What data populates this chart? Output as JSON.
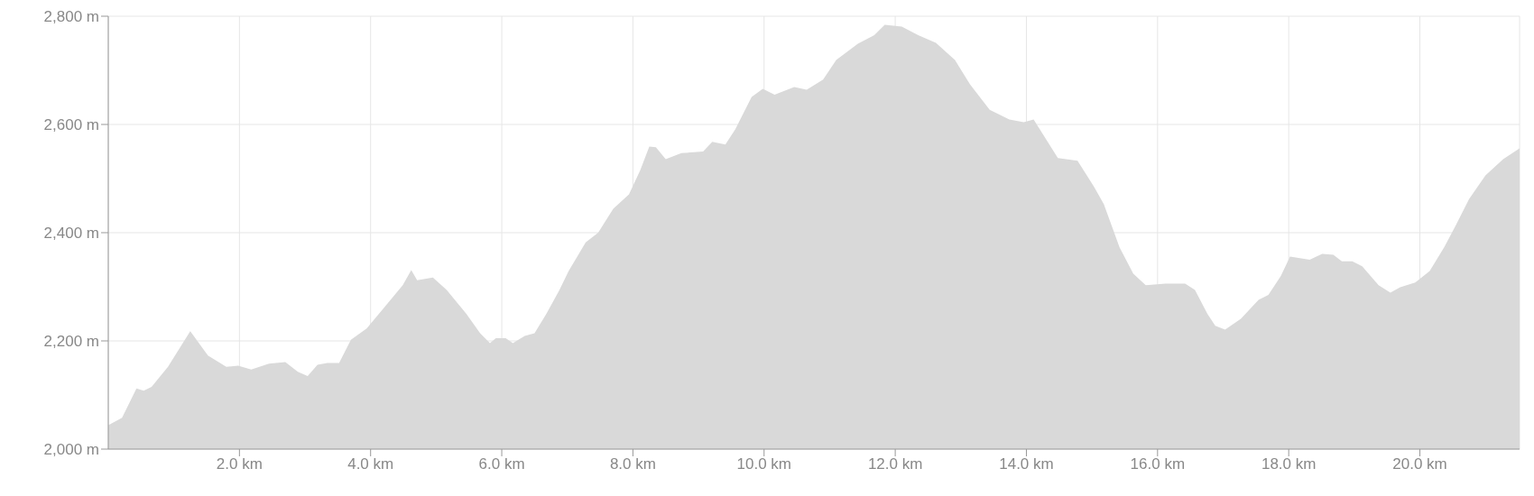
{
  "chart_data": {
    "type": "area",
    "grid": true,
    "xlim": [
      0,
      21.52
    ],
    "ylim": [
      2000,
      2800
    ],
    "xticks": [
      {
        "value": 2,
        "label": "2.0 km"
      },
      {
        "value": 4,
        "label": "4.0 km"
      },
      {
        "value": 6,
        "label": "6.0 km"
      },
      {
        "value": 8,
        "label": "8.0 km"
      },
      {
        "value": 10,
        "label": "10.0 km"
      },
      {
        "value": 12,
        "label": "12.0 km"
      },
      {
        "value": 14,
        "label": "14.0 km"
      },
      {
        "value": 16,
        "label": "16.0 km"
      },
      {
        "value": 18,
        "label": "18.0 km"
      },
      {
        "value": 20,
        "label": "20.0 km"
      }
    ],
    "yticks": [
      {
        "value": 2000,
        "label": "2,000 m"
      },
      {
        "value": 2200,
        "label": "2,200 m"
      },
      {
        "value": 2400,
        "label": "2,400 m"
      },
      {
        "value": 2600,
        "label": "2,600 m"
      },
      {
        "value": 2800,
        "label": "2,800 m"
      }
    ],
    "x": [
      0,
      0.21,
      0.43,
      0.54,
      0.66,
      0.91,
      1.25,
      1.52,
      1.8,
      1.98,
      2.18,
      2.45,
      2.7,
      2.89,
      3.04,
      3.19,
      3.34,
      3.52,
      3.7,
      3.94,
      4.21,
      4.49,
      4.62,
      4.71,
      4.95,
      5.16,
      5.46,
      5.67,
      5.82,
      5.91,
      6.06,
      6.17,
      6.35,
      6.5,
      6.68,
      6.88,
      7.02,
      7.28,
      7.47,
      7.7,
      7.94,
      8.11,
      8.25,
      8.35,
      8.5,
      8.74,
      9.07,
      9.21,
      9.41,
      9.56,
      9.81,
      9.98,
      10.16,
      10.46,
      10.65,
      10.9,
      11.1,
      11.43,
      11.68,
      11.84,
      12.1,
      12.35,
      12.62,
      12.91,
      13.14,
      13.44,
      13.74,
      13.96,
      14.11,
      14.48,
      14.78,
      15.03,
      15.18,
      15.42,
      15.63,
      15.82,
      16.12,
      16.42,
      16.57,
      16.76,
      16.88,
      17.03,
      17.27,
      17.54,
      17.69,
      17.88,
      18.02,
      18.32,
      18.51,
      18.68,
      18.81,
      18.97,
      19.12,
      19.37,
      19.55,
      19.7,
      19.93,
      20.15,
      20.37,
      20.55,
      20.75,
      21,
      21.27,
      21.52
    ],
    "series": [
      {
        "color": "#d9d9d9",
        "values": [
          2044,
          2058,
          2112,
          2108,
          2115,
          2152,
          2218,
          2173,
          2152,
          2154,
          2147,
          2158,
          2161,
          2143,
          2135,
          2156,
          2159,
          2159,
          2202,
          2223,
          2262,
          2303,
          2331,
          2312,
          2317,
          2294,
          2250,
          2214,
          2196,
          2205,
          2205,
          2196,
          2209,
          2214,
          2250,
          2294,
          2329,
          2382,
          2400,
          2444,
          2471,
          2515,
          2559,
          2558,
          2536,
          2547,
          2550,
          2568,
          2563,
          2591,
          2651,
          2666,
          2655,
          2669,
          2664,
          2683,
          2719,
          2749,
          2765,
          2784,
          2781,
          2765,
          2751,
          2719,
          2674,
          2627,
          2609,
          2604,
          2609,
          2538,
          2533,
          2485,
          2453,
          2373,
          2324,
          2303,
          2306,
          2306,
          2294,
          2250,
          2228,
          2221,
          2241,
          2276,
          2285,
          2320,
          2356,
          2350,
          2361,
          2359,
          2347,
          2347,
          2338,
          2303,
          2289,
          2299,
          2308,
          2329,
          2373,
          2414,
          2462,
          2506,
          2536,
          2556
        ]
      }
    ]
  }
}
